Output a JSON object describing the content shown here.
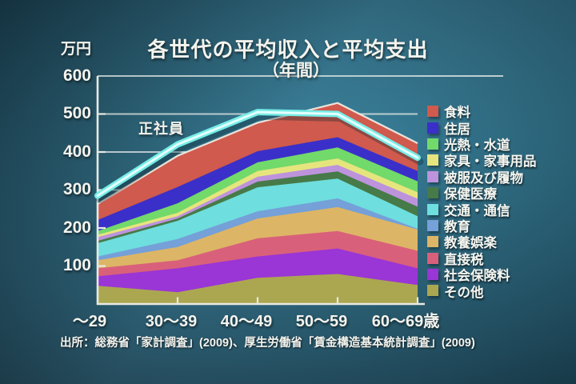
{
  "title": {
    "line1": "各世代の平均収入と平均支出",
    "line2": "（年間）"
  },
  "y_axis": {
    "unit": "万円",
    "ticks": [
      "600",
      "500",
      "400",
      "300",
      "200",
      "100"
    ]
  },
  "x_axis": {
    "labels": [
      "～29",
      "30～39",
      "40～49",
      "50～59",
      "60～69歳"
    ]
  },
  "line_label": "正社員",
  "source": "出所：総務省「家計調査」(2009)、厚生労働省「賃金構造基本統計調査」(2009)",
  "colors": {
    "income_line": "#76ece6",
    "income_line_core": "#eaffff",
    "area_top_outline": "#f3efe6",
    "axis": "#e9e9e2",
    "text": "#f4f4ee"
  },
  "legend": {
    "items": [
      {
        "label": "食料",
        "color": "#cf5a4d"
      },
      {
        "label": "住居",
        "color": "#3b2fc9"
      },
      {
        "label": "光熱・水道",
        "color": "#72d96b"
      },
      {
        "label": "家具・家事用品",
        "color": "#e6e57d"
      },
      {
        "label": "被服及び履物",
        "color": "#bd93dc"
      },
      {
        "label": "保健医療",
        "color": "#467a48"
      },
      {
        "label": "交通・通信",
        "color": "#6edede"
      },
      {
        "label": "教育",
        "color": "#75a0d8"
      },
      {
        "label": "教養娯楽",
        "color": "#ddb566"
      },
      {
        "label": "直接税",
        "color": "#d9607a"
      },
      {
        "label": "社会保険料",
        "color": "#9a35d6"
      },
      {
        "label": "その他",
        "color": "#aba751"
      }
    ]
  },
  "chart_data": {
    "type": "area",
    "stacked": true,
    "title": "各世代の平均収入と平均支出（年間）",
    "unit": "万円",
    "ylim": [
      0,
      600
    ],
    "grid": true,
    "legend_position": "right",
    "categories": [
      "～29",
      "30～39",
      "40～49",
      "50～59",
      "60～69歳"
    ],
    "series": [
      {
        "name": "食料",
        "color": "#cf5a4d",
        "values": [
          42,
          82,
          75,
          90,
          73
        ]
      },
      {
        "name": "住居",
        "color": "#3b2fc9",
        "values": [
          29,
          43,
          29,
          27,
          27
        ]
      },
      {
        "name": "光熱・水道",
        "color": "#72d96b",
        "values": [
          10,
          25,
          23,
          29,
          29
        ]
      },
      {
        "name": "家具・家事用品",
        "color": "#e6e57d",
        "values": [
          6,
          9,
          15,
          17,
          17
        ]
      },
      {
        "name": "被服及び履物",
        "color": "#bd93dc",
        "values": [
          10,
          6,
          13,
          17,
          21
        ]
      },
      {
        "name": "保健医療",
        "color": "#467a48",
        "values": [
          6,
          6,
          15,
          19,
          25
        ]
      },
      {
        "name": "交通・通信",
        "color": "#6edede",
        "values": [
          35,
          48,
          63,
          52,
          33
        ]
      },
      {
        "name": "教育",
        "color": "#75a0d8",
        "values": [
          10,
          21,
          19,
          23,
          2
        ]
      },
      {
        "name": "教養娯楽",
        "color": "#ddb566",
        "values": [
          21,
          35,
          52,
          63,
          56
        ]
      },
      {
        "name": "直接税",
        "color": "#d9607a",
        "values": [
          21,
          21,
          48,
          46,
          46
        ]
      },
      {
        "name": "社会保険料",
        "color": "#9a35d6",
        "values": [
          25,
          63,
          56,
          67,
          44
        ]
      },
      {
        "name": "その他",
        "color": "#aba751",
        "values": [
          48,
          31,
          69,
          79,
          50
        ]
      }
    ],
    "line_series": {
      "name": "正社員",
      "values": [
        285,
        420,
        505,
        500,
        385
      ]
    }
  }
}
